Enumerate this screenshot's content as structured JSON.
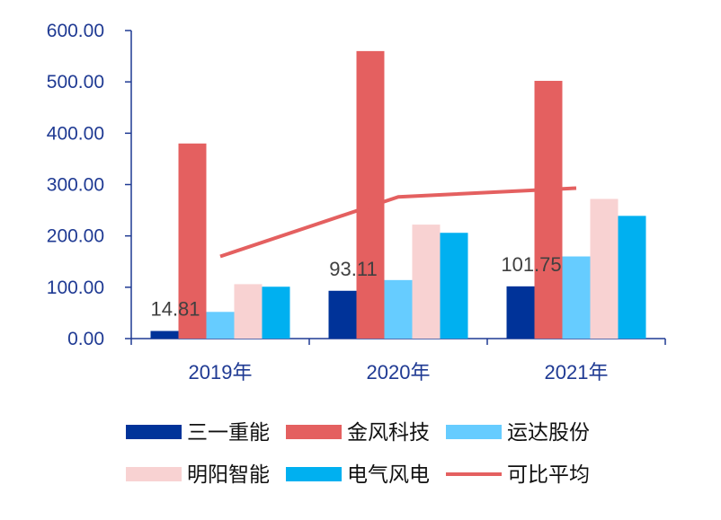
{
  "chart_data": {
    "type": "bar",
    "categories": [
      "2019年",
      "2020年",
      "2021年"
    ],
    "ylim": [
      0,
      600
    ],
    "yticks": [
      0,
      100,
      200,
      300,
      400,
      500,
      600
    ],
    "ytick_labels": [
      "0.00",
      "100.00",
      "200.00",
      "300.00",
      "400.00",
      "500.00",
      "600.00"
    ],
    "series": [
      {
        "name": "三一重能",
        "color": "#003399",
        "values": [
          14.81,
          93.11,
          101.75
        ]
      },
      {
        "name": "金风科技",
        "color": "#E46060",
        "values": [
          380,
          560,
          502
        ]
      },
      {
        "name": "运达股份",
        "color": "#66CCFF",
        "values": [
          52,
          114,
          160
        ]
      },
      {
        "name": "明阳智能",
        "color": "#F8D2D2",
        "values": [
          106,
          222,
          272
        ]
      },
      {
        "name": "电气风电",
        "color": "#00B0F0",
        "values": [
          101,
          206,
          239
        ]
      }
    ],
    "line_series": {
      "name": "可比平均",
      "color": "#E46060",
      "values": [
        160,
        276,
        293
      ]
    },
    "data_labels": [
      "14.81",
      "93.11",
      "101.75"
    ],
    "legend_position": "bottom",
    "grid": false
  }
}
